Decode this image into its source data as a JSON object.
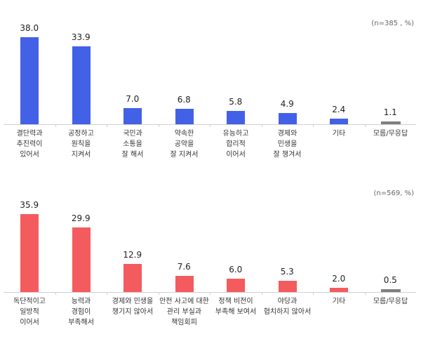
{
  "chart_data": [
    {
      "type": "bar",
      "title": "",
      "note": "(n=385 , %)",
      "xlabel": "",
      "ylabel": "",
      "ylim": [
        0,
        40
      ],
      "grid": false,
      "legend": null,
      "categories": [
        "결단력과\n추진력이\n있어서",
        "공정하고\n원칙을\n지켜서",
        "국민과\n소통을\n잘 해서",
        "약속한\n공약을\n잘 지켜서",
        "유능하고\n합리적\n이어서",
        "경제와\n민생을\n잘 챙겨서",
        "기타",
        "모름/무응답"
      ],
      "values": [
        38.0,
        33.9,
        7.0,
        6.8,
        5.8,
        4.9,
        2.4,
        1.1
      ],
      "value_labels": [
        "38.0",
        "33.9",
        "7.0",
        "6.8",
        "5.8",
        "4.9",
        "2.4",
        "1.1"
      ],
      "colors": [
        "#4361e6",
        "#4361e6",
        "#4361e6",
        "#4361e6",
        "#4361e6",
        "#4361e6",
        "#4361e6",
        "#7f7f7f"
      ]
    },
    {
      "type": "bar",
      "title": "",
      "note": "(n=569, %)",
      "xlabel": "",
      "ylabel": "",
      "ylim": [
        0,
        40
      ],
      "grid": false,
      "legend": null,
      "categories": [
        "독단적이고\n일방적\n이어서",
        "능력과\n경험이\n부족해서",
        "경제와 민생을\n챙기지 않아서",
        "안전 사고에 대한\n관리 부실과\n책임회피",
        "정책 비전이\n부족해 보여서",
        "야당과\n협치하지 않아서",
        "기타",
        "모름/무응답"
      ],
      "values": [
        35.9,
        29.9,
        12.9,
        7.6,
        6.0,
        5.3,
        2.0,
        0.5
      ],
      "value_labels": [
        "35.9",
        "29.9",
        "12.9",
        "7.6",
        "6.0",
        "5.3",
        "2.0",
        "0.5"
      ],
      "colors": [
        "#f45b5e",
        "#f45b5e",
        "#f45b5e",
        "#f45b5e",
        "#f45b5e",
        "#f45b5e",
        "#f45b5e",
        "#7f7f7f"
      ]
    }
  ]
}
